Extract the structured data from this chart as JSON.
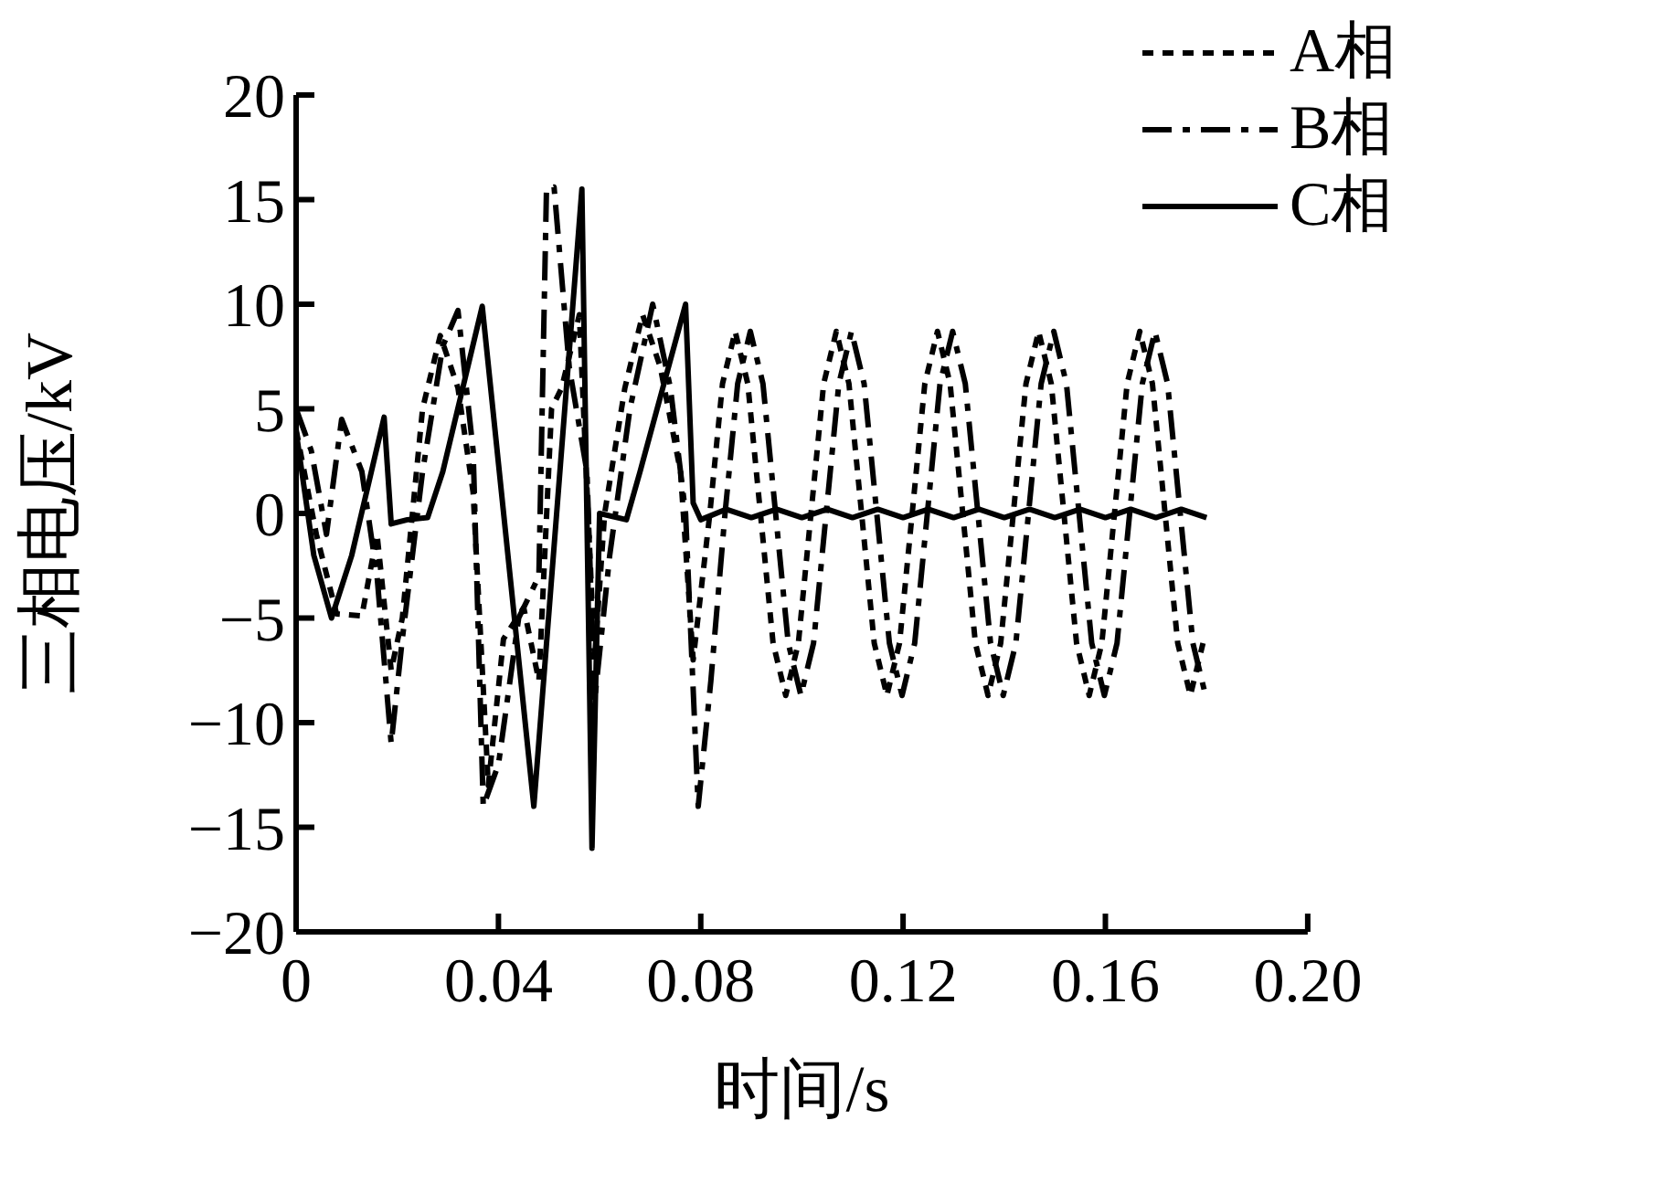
{
  "chart_data": {
    "type": "line",
    "xlabel": "时间/s",
    "ylabel": "三相电压/kV",
    "xlim": [
      0,
      0.2
    ],
    "ylim": [
      -20,
      20
    ],
    "xticks": [
      0,
      0.04,
      0.08,
      0.12,
      0.16,
      {
        "value": 0.2,
        "label": "0.20"
      }
    ],
    "yticks": [
      -20,
      -15,
      -10,
      -5,
      0,
      5,
      10,
      15,
      20
    ],
    "grid": false,
    "legend": "top right",
    "marker": "none",
    "series": [
      {
        "name": "A相",
        "color": "#000000",
        "line_style": "dotted",
        "x": [
          0,
          0.004,
          0.008,
          0.013,
          0.016,
          0.0188,
          0.021,
          0.025,
          0.0285,
          0.032,
          0.035,
          0.038,
          0.041,
          0.045,
          0.048,
          0.0505,
          0.0525,
          0.056,
          0.059,
          0.061,
          0.065,
          0.0685,
          0.072,
          0.076,
          0.0785,
          0.0818,
          0.0843,
          0.0868,
          0.0893,
          0.0918,
          0.0943,
          0.0968,
          0.0993,
          0.1018,
          0.1043,
          0.1068,
          0.1093,
          0.1118,
          0.1143,
          0.1168,
          0.1193,
          0.1218,
          0.1243,
          0.1268,
          0.1293,
          0.1318,
          0.1343,
          0.1368,
          0.1393,
          0.1418,
          0.1443,
          0.1468,
          0.1493,
          0.1518,
          0.1543,
          0.1568,
          0.1593,
          0.1618,
          0.1643,
          0.1668,
          0.1693,
          0.1718,
          0.1743,
          0.1768,
          0.1793
        ],
        "values": [
          4,
          -1,
          -4.8,
          -4.9,
          -1,
          -7.5,
          -5,
          5,
          8.5,
          6,
          1,
          -13,
          -6,
          -4.5,
          -8,
          5,
          6,
          9.5,
          -7,
          0,
          6,
          9.5,
          7,
          2,
          -7,
          0,
          6.2,
          8.7,
          6.2,
          0,
          -6.2,
          -8.7,
          -6.2,
          0,
          6.2,
          8.7,
          6.2,
          0,
          -6.2,
          -8.7,
          -6.2,
          0,
          6.2,
          8.7,
          6.2,
          0,
          -6.2,
          -8.7,
          -6.2,
          0,
          6.2,
          8.7,
          6.2,
          0,
          -6.2,
          -8.7,
          -6.2,
          0,
          6.2,
          8.7,
          6.2,
          0,
          -6.2,
          -8.7,
          -6.2
        ]
      },
      {
        "name": "B相",
        "color": "#000000",
        "line_style": "dashed",
        "x": [
          0,
          0.003,
          0.006,
          0.009,
          0.013,
          0.016,
          0.0188,
          0.021,
          0.025,
          0.029,
          0.032,
          0.035,
          0.037,
          0.04,
          0.044,
          0.048,
          0.0495,
          0.051,
          0.054,
          0.0575,
          0.059,
          0.062,
          0.066,
          0.0705,
          0.074,
          0.077,
          0.0795,
          0.082,
          0.0848,
          0.0873,
          0.0898,
          0.0923,
          0.0948,
          0.0973,
          0.0998,
          0.1023,
          0.1048,
          0.1073,
          0.1098,
          0.1123,
          0.1148,
          0.1173,
          0.1198,
          0.1223,
          0.1248,
          0.1273,
          0.1298,
          0.1323,
          0.1348,
          0.1373,
          0.1398,
          0.1423,
          0.1448,
          0.1473,
          0.1498,
          0.1523,
          0.1548,
          0.1573,
          0.1598,
          0.1623,
          0.1648,
          0.1673,
          0.1698,
          0.1723,
          0.1748,
          0.1773,
          0.1798
        ],
        "values": [
          5,
          3,
          -1,
          4.5,
          2,
          -3,
          -11,
          -6,
          2,
          8,
          9.7,
          3,
          -14,
          -12,
          -5,
          -3,
          15.5,
          15.6,
          7,
          2,
          -9,
          -2,
          5,
          10,
          6,
          0,
          -14,
          -8,
          0,
          6.2,
          8.7,
          6.2,
          0,
          -6.2,
          -8.7,
          -6.2,
          0,
          6.2,
          8.7,
          6.2,
          0,
          -6.2,
          -8.7,
          -6.2,
          0,
          6.2,
          8.7,
          6.2,
          0,
          -6.2,
          -8.7,
          -6.2,
          0,
          6.2,
          8.7,
          6.2,
          0,
          -6.2,
          -8.7,
          -6.2,
          0,
          6.2,
          8.7,
          6.2,
          0,
          -6.2,
          -8.7
        ]
      },
      {
        "name": "C相",
        "color": "#000000",
        "line_style": "solid",
        "x": [
          0,
          0.0035,
          0.007,
          0.011,
          0.0174,
          0.0188,
          0.022,
          0.026,
          0.029,
          0.0368,
          0.047,
          0.0565,
          0.0585,
          0.06,
          0.0653,
          0.068,
          0.077,
          0.0785,
          0.08,
          0.085,
          0.09,
          0.095,
          0.1,
          0.105,
          0.11,
          0.115,
          0.12,
          0.125,
          0.13,
          0.135,
          0.14,
          0.145,
          0.15,
          0.155,
          0.16,
          0.165,
          0.17,
          0.175,
          0.18
        ],
        "values": [
          3.9,
          -2,
          -5,
          -2,
          4.6,
          -0.5,
          -0.3,
          -0.2,
          2,
          9.9,
          -14,
          15.5,
          -16,
          0,
          -0.3,
          2,
          10,
          0.5,
          -0.3,
          0.2,
          -0.2,
          0.2,
          -0.2,
          0.2,
          -0.2,
          0.2,
          -0.2,
          0.2,
          -0.2,
          0.2,
          -0.2,
          0.2,
          -0.2,
          0.2,
          -0.2,
          0.2,
          -0.2,
          0.2,
          -0.2
        ]
      }
    ]
  }
}
